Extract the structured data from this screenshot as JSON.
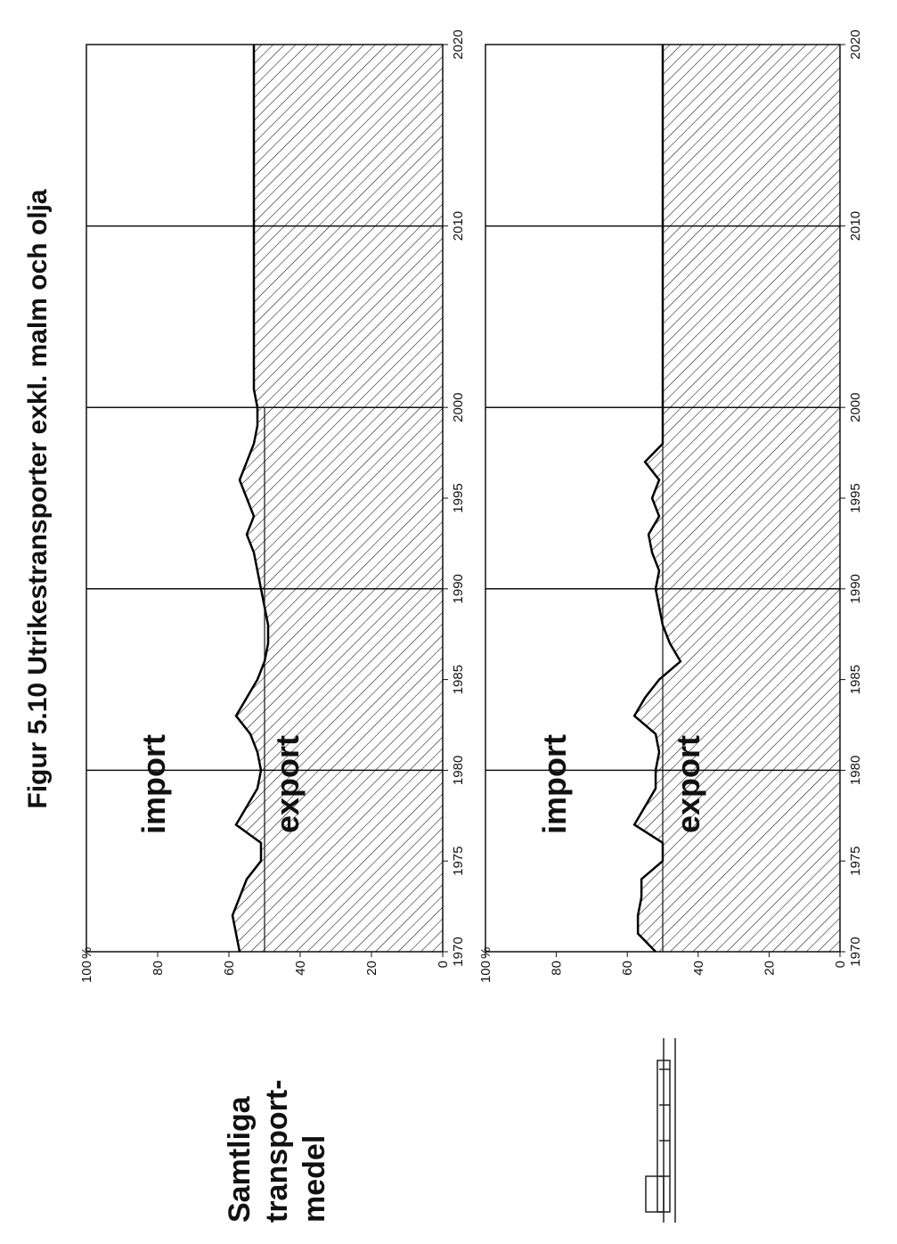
{
  "title": "Figur 5.10  Utrikestransporter exkl. malm och olja",
  "side_label": [
    "Samtliga",
    "transport-",
    "medel"
  ],
  "chart_data": [
    {
      "type": "area",
      "x": [
        1970,
        1971,
        1972,
        1973,
        1974,
        1975,
        1976,
        1977,
        1978,
        1979,
        1980,
        1981,
        1982,
        1983,
        1984,
        1985,
        1986,
        1987,
        1988,
        1989,
        1990,
        1991,
        1992,
        1993,
        1994,
        1995,
        1996,
        1997,
        1998,
        1999,
        2000,
        2001,
        2020
      ],
      "series": [
        {
          "name": "export",
          "color": "#000000",
          "values": [
            57,
            58,
            59,
            57,
            55,
            51,
            51,
            58,
            55,
            52,
            51,
            52,
            54,
            58,
            55,
            52,
            50,
            49,
            49,
            50,
            51,
            52,
            53,
            55,
            53,
            55,
            57,
            55,
            53,
            52,
            52,
            53,
            53
          ]
        }
      ],
      "annotations": [
        "import"
      ],
      "xlim": [
        1970,
        2020
      ],
      "xticks": [
        1970,
        1975,
        1980,
        1985,
        1990,
        1995,
        2000,
        2010,
        2020
      ],
      "ylim": [
        0,
        100
      ],
      "yticks": [
        0,
        20,
        40,
        60,
        80,
        100
      ],
      "y_unit": "%",
      "x_grid": [
        1980,
        1990,
        2000,
        2010
      ],
      "ref_line": {
        "value": 50,
        "until": 2000
      }
    },
    {
      "type": "area",
      "x": [
        1970,
        1971,
        1972,
        1973,
        1974,
        1975,
        1976,
        1977,
        1978,
        1979,
        1980,
        1981,
        1982,
        1983,
        1984,
        1985,
        1986,
        1987,
        1988,
        1989,
        1990,
        1991,
        1992,
        1993,
        1994,
        1995,
        1996,
        1997,
        1998,
        1999,
        2000,
        2001,
        2020
      ],
      "series": [
        {
          "name": "export",
          "color": "#000000",
          "values": [
            52,
            57,
            57,
            56,
            56,
            50,
            50,
            58,
            55,
            52,
            52,
            51,
            52,
            58,
            55,
            51,
            45,
            48,
            50,
            51,
            52,
            51,
            53,
            54,
            51,
            53,
            51,
            55,
            50,
            50,
            50,
            50,
            50
          ]
        }
      ],
      "annotations": [
        "import"
      ],
      "xlim": [
        1970,
        2020
      ],
      "xticks": [
        1970,
        1975,
        1980,
        1985,
        1990,
        1995,
        2000,
        2010,
        2020
      ],
      "ylim": [
        0,
        100
      ],
      "yticks": [
        0,
        20,
        40,
        60,
        80,
        100
      ],
      "y_unit": "%",
      "x_grid": [
        1980,
        1990,
        2000,
        2010
      ],
      "ref_line": {
        "value": 50,
        "until": 2000
      }
    }
  ]
}
